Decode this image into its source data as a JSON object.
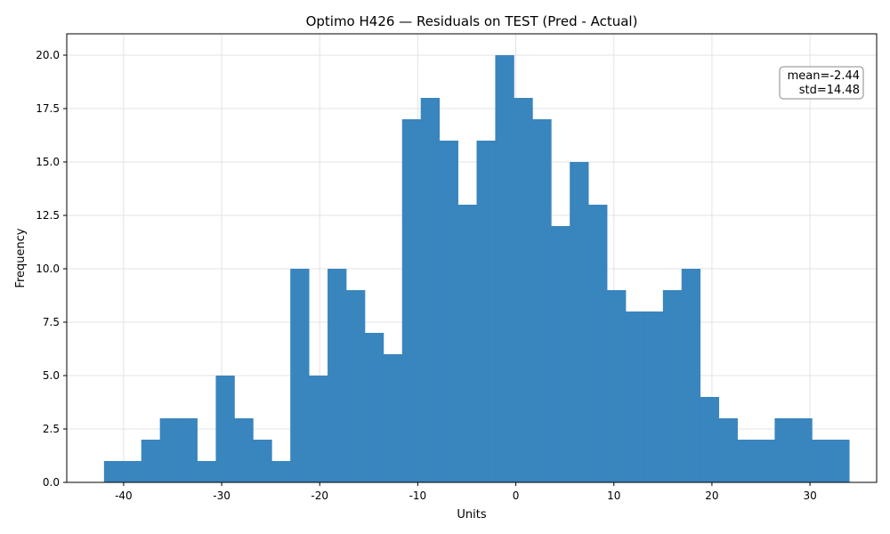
{
  "chart_data": {
    "type": "bar",
    "title": "Optimo H426 — Residuals on TEST (Pred - Actual)",
    "xlabel": "Units",
    "ylabel": "Frequency",
    "xlim": [
      -45.8,
      36.8
    ],
    "ylim": [
      0,
      21
    ],
    "x_ticks": [
      -40,
      -30,
      -20,
      -10,
      0,
      10,
      20,
      30
    ],
    "y_ticks": [
      "0.0",
      "2.5",
      "5.0",
      "7.5",
      "10.0",
      "12.5",
      "15.0",
      "17.5",
      "20.0"
    ],
    "grid": true,
    "bar_color": "#3583bd",
    "bins": [
      {
        "start": -42.0,
        "end": -40.1,
        "value": 1
      },
      {
        "start": -40.1,
        "end": -38.2,
        "value": 1
      },
      {
        "start": -38.2,
        "end": -36.3,
        "value": 2
      },
      {
        "start": -36.3,
        "end": -34.4,
        "value": 3
      },
      {
        "start": -34.4,
        "end": -32.5,
        "value": 3
      },
      {
        "start": -32.5,
        "end": -30.6,
        "value": 1
      },
      {
        "start": -30.6,
        "end": -28.7,
        "value": 5
      },
      {
        "start": -28.7,
        "end": -26.8,
        "value": 3
      },
      {
        "start": -26.8,
        "end": -24.9,
        "value": 2
      },
      {
        "start": -24.9,
        "end": -23.0,
        "value": 1
      },
      {
        "start": -23.0,
        "end": -21.1,
        "value": 10
      },
      {
        "start": -21.1,
        "end": -19.2,
        "value": 5
      },
      {
        "start": -19.2,
        "end": -17.3,
        "value": 10
      },
      {
        "start": -17.3,
        "end": -15.4,
        "value": 9
      },
      {
        "start": -15.4,
        "end": -13.5,
        "value": 7
      },
      {
        "start": -13.5,
        "end": -11.6,
        "value": 6
      },
      {
        "start": -11.6,
        "end": -9.7,
        "value": 17
      },
      {
        "start": -9.7,
        "end": -7.8,
        "value": 18
      },
      {
        "start": -7.8,
        "end": -5.9,
        "value": 16
      },
      {
        "start": -5.9,
        "end": -4.0,
        "value": 13
      },
      {
        "start": -4.0,
        "end": -2.1,
        "value": 16
      },
      {
        "start": -2.1,
        "end": -0.2,
        "value": 20
      },
      {
        "start": -0.2,
        "end": 1.7,
        "value": 18
      },
      {
        "start": 1.7,
        "end": 3.6,
        "value": 17
      },
      {
        "start": 3.6,
        "end": 5.5,
        "value": 12
      },
      {
        "start": 5.5,
        "end": 7.4,
        "value": 15
      },
      {
        "start": 7.4,
        "end": 9.3,
        "value": 13
      },
      {
        "start": 9.3,
        "end": 11.2,
        "value": 9
      },
      {
        "start": 11.2,
        "end": 13.1,
        "value": 8
      },
      {
        "start": 13.1,
        "end": 15.0,
        "value": 8
      },
      {
        "start": 15.0,
        "end": 16.9,
        "value": 9
      },
      {
        "start": 16.9,
        "end": 18.8,
        "value": 10
      },
      {
        "start": 18.8,
        "end": 20.7,
        "value": 4
      },
      {
        "start": 20.7,
        "end": 22.6,
        "value": 3
      },
      {
        "start": 22.6,
        "end": 24.5,
        "value": 2
      },
      {
        "start": 24.5,
        "end": 26.4,
        "value": 2
      },
      {
        "start": 26.4,
        "end": 28.3,
        "value": 3
      },
      {
        "start": 28.3,
        "end": 30.2,
        "value": 3
      },
      {
        "start": 30.2,
        "end": 32.1,
        "value": 2
      },
      {
        "start": 32.1,
        "end": 34.0,
        "value": 2
      }
    ],
    "annotations": {
      "mean": "mean=-2.44",
      "std": "std=14.48"
    }
  }
}
